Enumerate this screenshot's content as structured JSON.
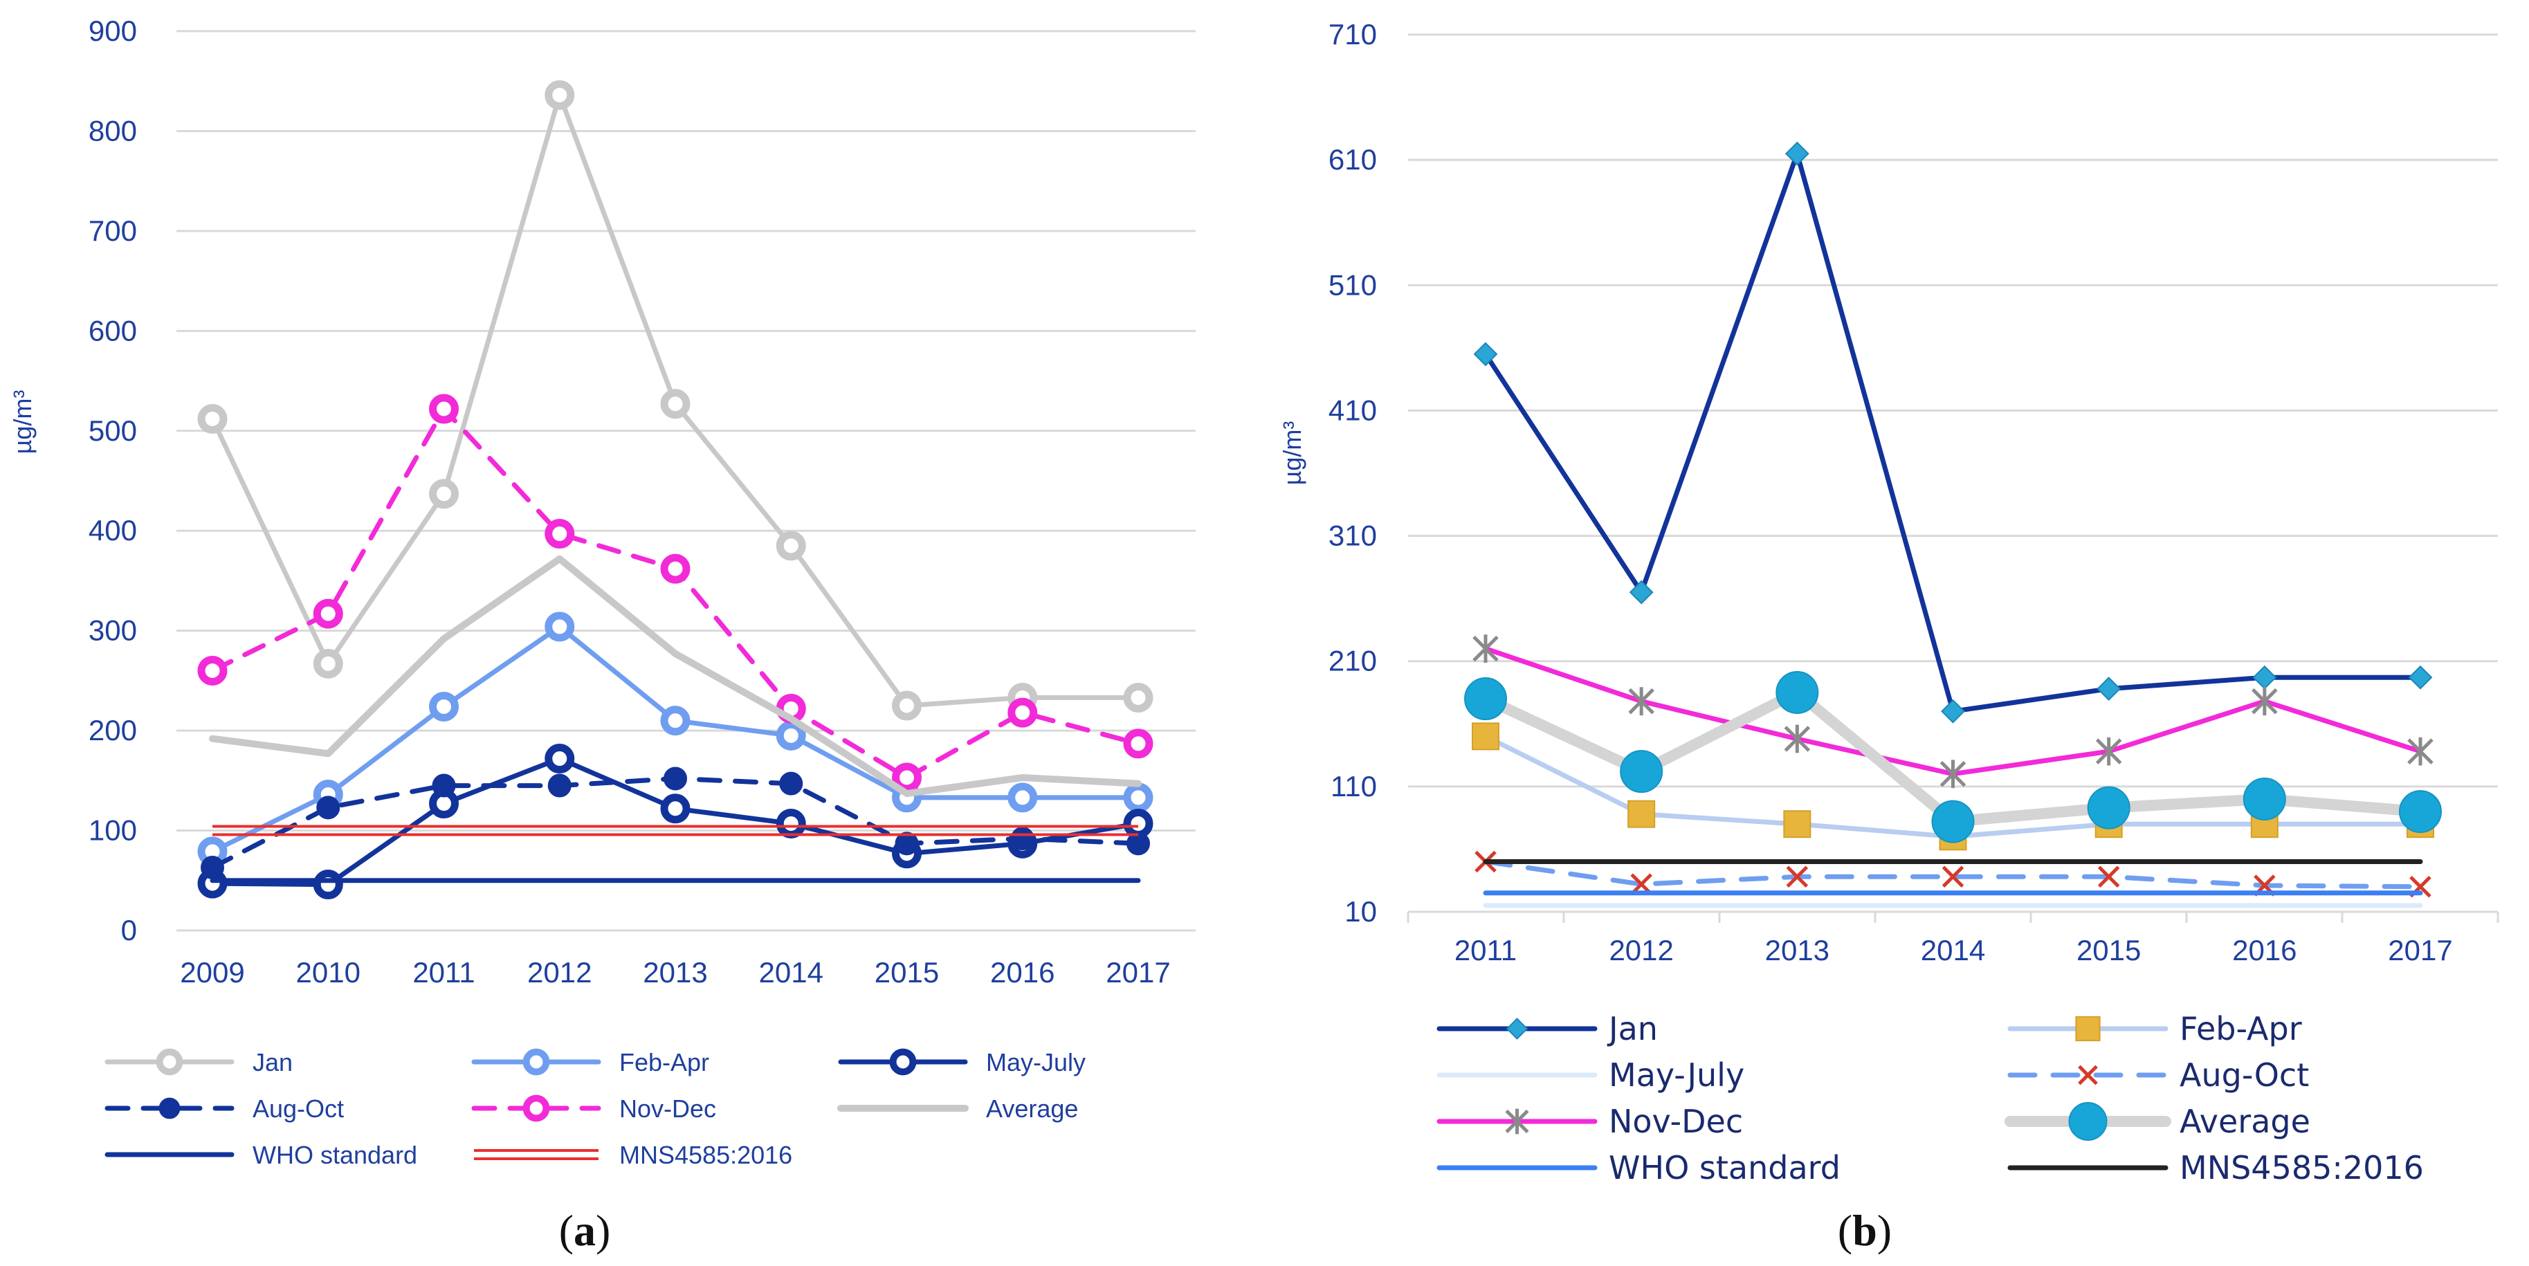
{
  "chart_data": [
    {
      "panel": "(a)",
      "panel_letter": "a",
      "type": "line",
      "ylabel": "µg/m³",
      "ylim": [
        0,
        900
      ],
      "yticks": [
        0,
        100,
        200,
        300,
        400,
        500,
        600,
        700,
        800,
        900
      ],
      "grid": true,
      "legend_position": "bottom",
      "categories": [
        "2009",
        "2010",
        "2011",
        "2012",
        "2013",
        "2014",
        "2015",
        "2016",
        "2017"
      ],
      "series": [
        {
          "name": "Jan",
          "values": [
            512,
            267,
            437,
            836,
            527,
            385,
            225,
            233,
            233
          ],
          "color": "#c8c8c8",
          "marker": "open-circle",
          "style": "solid"
        },
        {
          "name": "Feb-Apr",
          "values": [
            79,
            136,
            224,
            304,
            210,
            195,
            133,
            133,
            133
          ],
          "color": "#6f9ef0",
          "marker": "open-circle",
          "style": "solid"
        },
        {
          "name": "May-July",
          "values": [
            47,
            46,
            127,
            172,
            122,
            107,
            77,
            87,
            107
          ],
          "color": "#12339a",
          "marker": "open-circle",
          "style": "solid"
        },
        {
          "name": "Aug-Oct",
          "values": [
            63,
            123,
            145,
            145,
            152,
            147,
            87,
            92,
            87
          ],
          "color": "#12339a",
          "marker": "filled-circle",
          "style": "dashed"
        },
        {
          "name": "Nov-Dec",
          "values": [
            260,
            317,
            522,
            397,
            362,
            222,
            153,
            218,
            187
          ],
          "color": "#f22ad8",
          "marker": "open-circle",
          "style": "dashed"
        },
        {
          "name": "Average",
          "values": [
            192,
            177,
            292,
            372,
            277,
            212,
            137,
            153,
            147
          ],
          "color": "#c8c8c8",
          "marker": "none",
          "style": "thick"
        },
        {
          "name": "WHO standard",
          "values": [
            50,
            50,
            50,
            50,
            50,
            50,
            50,
            50,
            50
          ],
          "color": "#12339a",
          "marker": "none",
          "style": "solid"
        },
        {
          "name": "MNS4585:2016",
          "values": [
            100,
            100,
            100,
            100,
            100,
            100,
            100,
            100,
            100
          ],
          "color": "#e83030",
          "marker": "none",
          "style": "double"
        }
      ]
    },
    {
      "panel": "(b)",
      "panel_letter": "b",
      "type": "line",
      "ylabel": "µg/m³",
      "ylim": [
        10,
        710
      ],
      "yticks": [
        10,
        110,
        210,
        310,
        410,
        510,
        610,
        710
      ],
      "grid": true,
      "legend_position": "bottom",
      "categories": [
        "2011",
        "2012",
        "2013",
        "2014",
        "2015",
        "2016",
        "2017"
      ],
      "series": [
        {
          "name": "Jan",
          "values": [
            455,
            265,
            615,
            170,
            188,
            197,
            197
          ],
          "color": "#12339a",
          "marker": "diamond",
          "style": "solid"
        },
        {
          "name": "Feb-Apr",
          "values": [
            150,
            88,
            80,
            70,
            80,
            80,
            80
          ],
          "color": "#b8cdf0",
          "marker": "square",
          "style": "solid"
        },
        {
          "name": "May-July",
          "values": [
            15,
            15,
            15,
            15,
            15,
            15,
            15
          ],
          "color": "#dcebfa",
          "marker": "none",
          "style": "solid"
        },
        {
          "name": "Aug-Oct",
          "values": [
            50,
            32,
            38,
            38,
            38,
            31,
            30
          ],
          "color": "#6f9ef0",
          "marker": "x",
          "style": "dashed"
        },
        {
          "name": "Nov-Dec",
          "values": [
            220,
            178,
            148,
            120,
            138,
            178,
            138
          ],
          "color": "#f22ad8",
          "marker": "asterisk",
          "style": "solid"
        },
        {
          "name": "Average",
          "values": [
            180,
            122,
            185,
            82,
            93,
            100,
            90
          ],
          "color": "#d4d4d4",
          "marker": "big-circle",
          "style": "thick"
        },
        {
          "name": "WHO standard",
          "values": [
            25,
            25,
            25,
            25,
            25,
            25,
            25
          ],
          "color": "#3b7ff5",
          "marker": "none",
          "style": "solid"
        },
        {
          "name": "MNS4585:2016",
          "values": [
            50,
            50,
            50,
            50,
            50,
            50,
            50
          ],
          "color": "#222222",
          "marker": "none",
          "style": "solid"
        }
      ]
    }
  ]
}
